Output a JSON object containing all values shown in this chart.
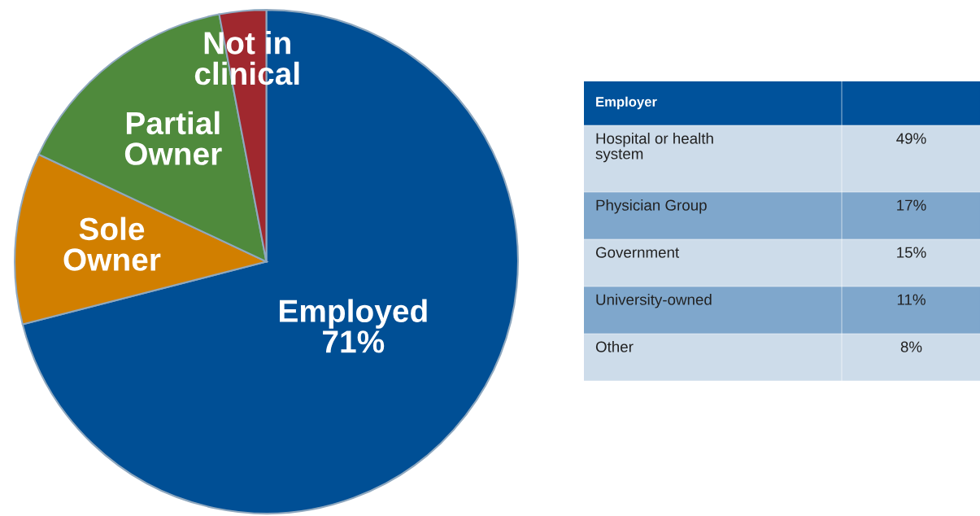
{
  "chart_data": [
    {
      "type": "pie",
      "categories": [
        "Employed",
        "Sole\nOwner",
        "Partial\nOwner",
        "Not in\nclinical"
      ],
      "values": [
        71,
        11,
        15,
        3
      ],
      "colors": [
        "#004f95",
        "#d17f00",
        "#4f8a3c",
        "#a0282e"
      ],
      "value_labels": [
        "71%",
        null,
        null,
        null
      ]
    },
    {
      "type": "other",
      "title": "Employer",
      "color": "#00529b",
      "categories": [
        "Hospital or health\nsystem",
        "Physician Group",
        "Government",
        "University-owned",
        "Other"
      ],
      "values": [
        49,
        17,
        15,
        11,
        8
      ],
      "value_labels": [
        "49%",
        "17%",
        "15%",
        "11%",
        "8%"
      ],
      "colors": [
        "#cddcea",
        "#7fa7cc",
        "#cddcea",
        "#7fa7cc",
        "#cddcea"
      ]
    }
  ]
}
